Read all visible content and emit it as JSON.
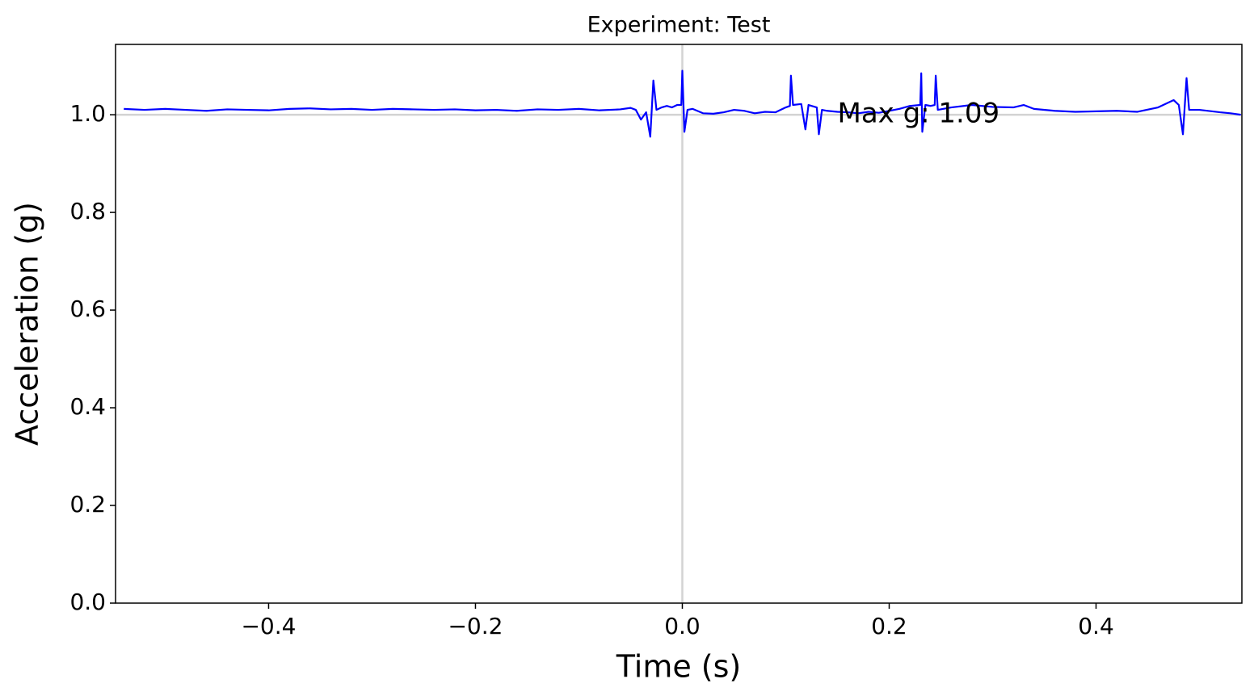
{
  "chart_data": {
    "type": "line",
    "title": "Experiment: Test",
    "x_label": "Time (s)",
    "y_label": "Acceleration (g)",
    "x": [
      -0.54,
      -0.52,
      -0.5,
      -0.48,
      -0.46,
      -0.44,
      -0.42,
      -0.4,
      -0.38,
      -0.36,
      -0.34,
      -0.32,
      -0.3,
      -0.28,
      -0.26,
      -0.24,
      -0.22,
      -0.2,
      -0.18,
      -0.16,
      -0.14,
      -0.12,
      -0.1,
      -0.08,
      -0.06,
      -0.05,
      -0.045,
      -0.04,
      -0.035,
      -0.031,
      -0.028,
      -0.025,
      -0.02,
      -0.015,
      -0.01,
      -0.005,
      -0.001,
      0.0,
      0.002,
      0.005,
      0.01,
      0.02,
      0.03,
      0.04,
      0.05,
      0.06,
      0.07,
      0.08,
      0.09,
      0.1,
      0.104,
      0.105,
      0.107,
      0.115,
      0.119,
      0.122,
      0.13,
      0.132,
      0.135,
      0.14,
      0.15,
      0.16,
      0.17,
      0.18,
      0.19,
      0.2,
      0.21,
      0.22,
      0.23,
      0.231,
      0.232,
      0.235,
      0.24,
      0.244,
      0.245,
      0.247,
      0.26,
      0.28,
      0.3,
      0.32,
      0.33,
      0.34,
      0.36,
      0.38,
      0.4,
      0.42,
      0.44,
      0.46,
      0.475,
      0.48,
      0.484,
      0.4875,
      0.49,
      0.5,
      0.52,
      0.53,
      0.54
    ],
    "series": [
      {
        "name": "Acceleration",
        "color": "#0000ff",
        "values": [
          1.012,
          1.01,
          1.012,
          1.01,
          1.008,
          1.011,
          1.01,
          1.009,
          1.012,
          1.013,
          1.011,
          1.012,
          1.01,
          1.012,
          1.011,
          1.01,
          1.011,
          1.009,
          1.01,
          1.008,
          1.011,
          1.01,
          1.012,
          1.009,
          1.011,
          1.014,
          1.01,
          0.99,
          1.005,
          0.955,
          1.07,
          1.01,
          1.015,
          1.018,
          1.015,
          1.02,
          1.02,
          1.09,
          0.965,
          1.01,
          1.012,
          1.003,
          1.002,
          1.005,
          1.01,
          1.008,
          1.003,
          1.006,
          1.005,
          1.015,
          1.018,
          1.08,
          1.02,
          1.022,
          0.97,
          1.02,
          1.015,
          0.96,
          1.01,
          1.008,
          1.006,
          1.005,
          1.003,
          1.006,
          1.004,
          1.008,
          1.012,
          1.018,
          1.02,
          1.085,
          0.965,
          1.02,
          1.018,
          1.02,
          1.08,
          1.01,
          1.015,
          1.02,
          1.016,
          1.015,
          1.02,
          1.012,
          1.008,
          1.006,
          1.007,
          1.008,
          1.006,
          1.015,
          1.03,
          1.02,
          0.96,
          1.075,
          1.01,
          1.01,
          1.005,
          1.003,
          1.0
        ]
      }
    ],
    "xlim": [
      -0.548,
      0.541
    ],
    "ylim": [
      0,
      1.144
    ],
    "xticks": [
      {
        "value": -0.4,
        "label": "−0.4"
      },
      {
        "value": -0.2,
        "label": "−0.2"
      },
      {
        "value": 0,
        "label": "0.0"
      },
      0.2,
      0.4
    ],
    "yticks": [
      {
        "value": 0,
        "label": "0.0"
      },
      0.2,
      0.4,
      0.6,
      0.8,
      {
        "value": 1,
        "label": "1.0"
      }
    ],
    "hline": 1.0,
    "vline": 0,
    "reference_color": "#d3d3d3",
    "annotation": {
      "text": "Max g: 1.09",
      "x": 0.15,
      "y": 1.0,
      "color": "green"
    }
  }
}
